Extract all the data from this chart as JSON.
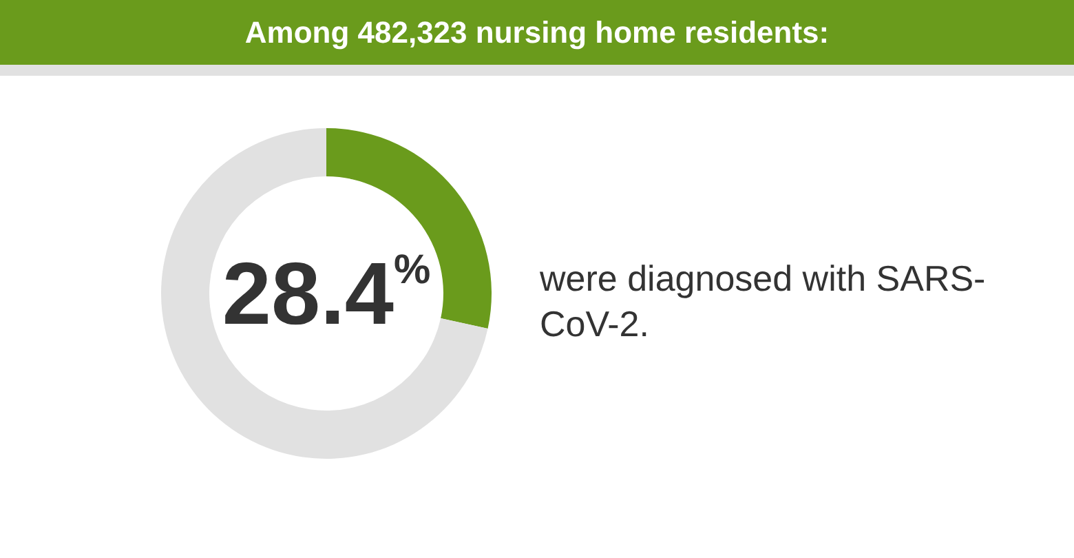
{
  "chart_data": {
    "type": "donut",
    "title": "Among 482,323 nursing home residents:",
    "categories": [
      null,
      null
    ],
    "values": [
      28.4,
      71.6
    ],
    "colors": [
      "#6a9b1c",
      "#e1e1e1"
    ],
    "value_labels": [
      "28.4%",
      null
    ],
    "annotations": [
      "were diagnosed with SARS-CoV-2."
    ]
  }
}
